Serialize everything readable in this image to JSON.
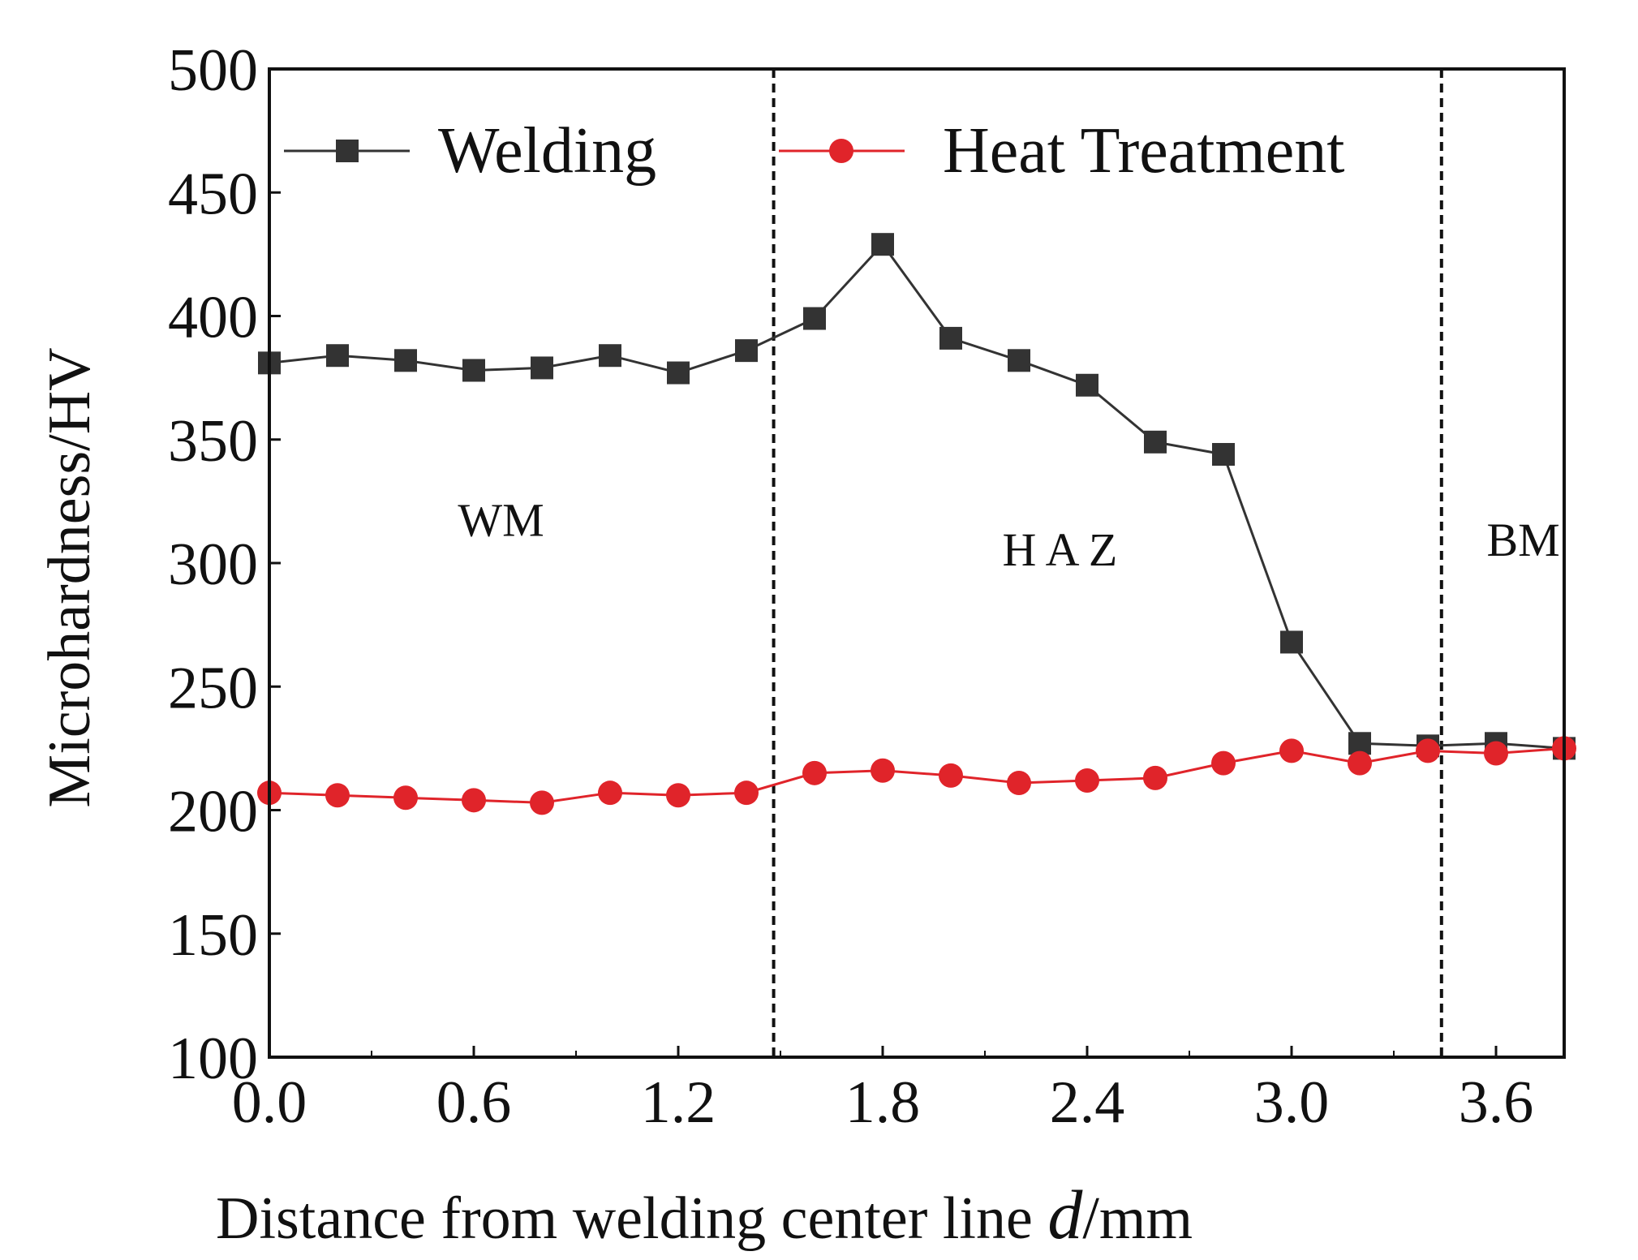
{
  "chart_data": {
    "type": "line",
    "title": "",
    "xlabel": "Distance from welding center line ",
    "xlabel_var": "d",
    "xlabel_unit": "/mm",
    "ylabel": "Microhardness/HV",
    "xlim": [
      0.0,
      3.8
    ],
    "ylim": [
      100,
      500
    ],
    "xticks": [
      "0.0",
      "0.6",
      "1.2",
      "1.8",
      "2.4",
      "3.0",
      "3.6"
    ],
    "yticks": [
      "100",
      "150",
      "200",
      "250",
      "300",
      "350",
      "400",
      "450",
      "500"
    ],
    "grid": false,
    "legend_position": "top",
    "x": [
      0.0,
      0.2,
      0.4,
      0.6,
      0.8,
      1.0,
      1.2,
      1.4,
      1.6,
      1.8,
      2.0,
      2.2,
      2.4,
      2.6,
      2.8,
      3.0,
      3.2,
      3.4,
      3.6,
      3.8
    ],
    "series": [
      {
        "name": "Welding",
        "marker": "square",
        "color": "#333333",
        "values": [
          381,
          384,
          382,
          378,
          379,
          384,
          377,
          386,
          399,
          429,
          391,
          382,
          372,
          349,
          344,
          268,
          227,
          226,
          227,
          225
        ]
      },
      {
        "name": "Heat Treatment",
        "marker": "circle",
        "color": "#e0242a",
        "values": [
          207,
          206,
          205,
          204,
          203,
          207,
          206,
          207,
          215,
          216,
          214,
          211,
          212,
          213,
          219,
          224,
          219,
          224,
          223,
          225
        ]
      }
    ],
    "boundaries": [
      1.48,
      3.44
    ],
    "regions": [
      {
        "label": "WM",
        "x": 0.68,
        "y": 311
      },
      {
        "label": "H A Z",
        "x": 2.32,
        "y": 299
      },
      {
        "label": "BM",
        "x": 3.68,
        "y": 303
      }
    ]
  }
}
